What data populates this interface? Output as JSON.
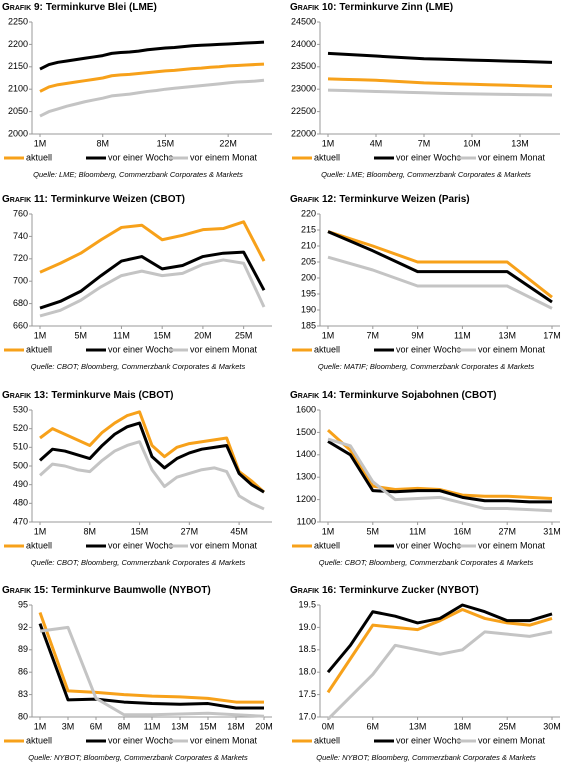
{
  "chart_data": [
    {
      "type": "line",
      "label": "Grafik 9:",
      "title": "Terminkurve Blei (LME)",
      "source": "Quelle: LME; Bloomberg, Commerzbank Corporates & Markets",
      "categories": [
        "1M",
        null,
        null,
        null,
        null,
        null,
        null,
        "8M",
        null,
        null,
        null,
        null,
        null,
        null,
        "15M",
        null,
        null,
        null,
        null,
        null,
        null,
        "22M",
        null,
        null,
        null,
        null
      ],
      "ylim": [
        2000,
        2250
      ],
      "yticks": [
        2000,
        2050,
        2100,
        2150,
        2200,
        2250
      ],
      "series": [
        {
          "name": "aktuell",
          "color": "#f7a11a",
          "values": [
            2095,
            2105,
            2110,
            2113,
            2116,
            2119,
            2122,
            2125,
            2130,
            2132,
            2133,
            2135,
            2137,
            2139,
            2141,
            2142,
            2144,
            2146,
            2147,
            2149,
            2150,
            2152,
            2153,
            2154,
            2155,
            2156
          ]
        },
        {
          "name": "vor einer Woche",
          "color": "#000000",
          "values": [
            2145,
            2155,
            2160,
            2163,
            2166,
            2169,
            2172,
            2175,
            2180,
            2182,
            2183,
            2185,
            2188,
            2190,
            2192,
            2193,
            2195,
            2197,
            2198,
            2199,
            2200,
            2201,
            2202,
            2203,
            2204,
            2205
          ]
        },
        {
          "name": "vor einem Monat",
          "color": "#c4c4c4",
          "values": [
            2040,
            2050,
            2056,
            2062,
            2067,
            2072,
            2076,
            2080,
            2085,
            2087,
            2089,
            2092,
            2095,
            2097,
            2100,
            2102,
            2104,
            2106,
            2108,
            2110,
            2112,
            2114,
            2116,
            2117,
            2118,
            2120
          ]
        }
      ]
    },
    {
      "type": "line",
      "label": "Grafik 10:",
      "title": "Terminkurve Zinn (LME)",
      "source": "Quelle: LME; Bloomberg, Commerzbank Corporates & Markets",
      "categories": [
        "1M",
        null,
        null,
        "4M",
        null,
        null,
        "7M",
        null,
        null,
        "10M",
        null,
        null,
        "13M",
        null,
        null
      ],
      "ylim": [
        22000,
        24500
      ],
      "yticks": [
        22000,
        22500,
        23000,
        23500,
        24000,
        24500
      ],
      "series": [
        {
          "name": "aktuell",
          "color": "#f7a11a",
          "values": [
            23230,
            23220,
            23210,
            23200,
            23180,
            23160,
            23140,
            23130,
            23120,
            23110,
            23100,
            23090,
            23080,
            23070,
            23060
          ]
        },
        {
          "name": "vor einer Woche",
          "color": "#000000",
          "values": [
            23800,
            23780,
            23760,
            23740,
            23720,
            23700,
            23680,
            23670,
            23660,
            23650,
            23640,
            23630,
            23620,
            23610,
            23600
          ]
        },
        {
          "name": "vor einem Monat",
          "color": "#c4c4c4",
          "values": [
            22980,
            22970,
            22960,
            22950,
            22940,
            22930,
            22920,
            22910,
            22900,
            22895,
            22890,
            22885,
            22880,
            22875,
            22870
          ]
        }
      ]
    },
    {
      "type": "line",
      "label": "Grafik 11:",
      "title": "Terminkurve Weizen (CBOT)",
      "source": "Quelle: CBOT; Bloomberg, Commerzbank Corporates & Markets",
      "categories": [
        "1M",
        null,
        "5M",
        null,
        "11M",
        null,
        "15M",
        null,
        "20M",
        null,
        "25M",
        null
      ],
      "ylim": [
        660,
        760
      ],
      "yticks": [
        660,
        680,
        700,
        720,
        740,
        760
      ],
      "series": [
        {
          "name": "aktuell",
          "color": "#f7a11a",
          "values": [
            708,
            716,
            725,
            737,
            748,
            750,
            737,
            741,
            746,
            747,
            753,
            718
          ]
        },
        {
          "name": "vor einer Woche",
          "color": "#000000",
          "values": [
            676,
            682,
            691,
            705,
            718,
            722,
            711,
            714,
            722,
            725,
            726,
            692
          ]
        },
        {
          "name": "vor einem Monat",
          "color": "#c4c4c4",
          "values": [
            669,
            674,
            683,
            695,
            705,
            709,
            705,
            707,
            715,
            719,
            716,
            677
          ]
        }
      ]
    },
    {
      "type": "line",
      "label": "Grafik 12:",
      "title": "Terminkurve Weizen (Paris)",
      "source": "Quelle: MATIF; Bloomberg, Commerzbank Corporates & Markets",
      "categories": [
        "1M",
        "7M",
        "9M",
        "11M",
        "13M",
        "17M"
      ],
      "ylim": [
        185,
        220
      ],
      "yticks": [
        185,
        190,
        195,
        200,
        205,
        210,
        215,
        220
      ],
      "series": [
        {
          "name": "aktuell",
          "color": "#f7a11a",
          "values": [
            214.5,
            210,
            205,
            205,
            205,
            194
          ]
        },
        {
          "name": "vor einer Woche",
          "color": "#000000",
          "values": [
            214.5,
            208.5,
            202,
            202,
            202,
            192.5
          ]
        },
        {
          "name": "vor einem Monat",
          "color": "#c4c4c4",
          "values": [
            206.5,
            202.5,
            197.5,
            197.5,
            197.5,
            190.5
          ]
        }
      ]
    },
    {
      "type": "line",
      "label": "Grafik 13:",
      "title": "Terminkurve Mais (CBOT)",
      "source": "Quelle: CBOT; Bloomberg, Commerzbank Corporates & Markets",
      "categories": [
        "1M",
        null,
        null,
        null,
        "8M",
        null,
        null,
        null,
        "15M",
        null,
        null,
        null,
        "27M",
        null,
        null,
        null,
        "45M",
        null,
        null
      ],
      "ylim": [
        470,
        530
      ],
      "yticks": [
        470,
        480,
        490,
        500,
        510,
        520,
        530
      ],
      "series": [
        {
          "name": "aktuell",
          "color": "#f7a11a",
          "values": [
            515,
            520,
            517,
            514,
            511,
            518,
            523,
            527,
            529,
            511,
            505,
            510,
            512,
            513,
            514,
            515,
            497,
            492,
            486
          ]
        },
        {
          "name": "vor einer Woche",
          "color": "#000000",
          "values": [
            503,
            509,
            508,
            506,
            504,
            511,
            517,
            521,
            523,
            505,
            499,
            504,
            507,
            509,
            510,
            511,
            496,
            490,
            486
          ]
        },
        {
          "name": "vor einem Monat",
          "color": "#c4c4c4",
          "values": [
            495,
            501,
            500,
            498,
            497,
            503,
            508,
            511,
            513,
            498,
            489,
            494,
            496,
            498,
            499,
            497,
            484,
            480,
            477
          ]
        }
      ]
    },
    {
      "type": "line",
      "label": "Grafik 14:",
      "title": "Terminkurve Sojabohnen (CBOT)",
      "source": "Quelle: CBOT; Bloomberg, Commerzbank Corporates & Markets",
      "categories": [
        "1M",
        null,
        "5M",
        null,
        "11M",
        null,
        "16M",
        null,
        "27M",
        null,
        "31M"
      ],
      "ylim": [
        1100,
        1600
      ],
      "yticks": [
        1100,
        1200,
        1300,
        1400,
        1500,
        1600
      ],
      "series": [
        {
          "name": "aktuell",
          "color": "#f7a11a",
          "values": [
            1510,
            1420,
            1260,
            1245,
            1250,
            1245,
            1220,
            1215,
            1215,
            1210,
            1205
          ]
        },
        {
          "name": "vor einer Woche",
          "color": "#000000",
          "values": [
            1460,
            1400,
            1240,
            1235,
            1240,
            1240,
            1210,
            1195,
            1195,
            1190,
            1190
          ]
        },
        {
          "name": "vor einem Monat",
          "color": "#c4c4c4",
          "values": [
            1470,
            1440,
            1280,
            1200,
            1205,
            1210,
            1185,
            1160,
            1160,
            1155,
            1150
          ]
        }
      ]
    },
    {
      "type": "line",
      "label": "Grafik 15:",
      "title": "Terminkurve Baumwolle (NYBOT)",
      "source": "Quelle: NYBOT; Bloomberg, Commerzbank Corporates & Markets",
      "categories": [
        "1M",
        "3M",
        "6M",
        "8M",
        "11M",
        "13M",
        "15M",
        "18M",
        "20M"
      ],
      "ylim": [
        80,
        95
      ],
      "yticks": [
        80,
        83,
        86,
        89,
        92,
        95
      ],
      "series": [
        {
          "name": "aktuell",
          "color": "#f7a11a",
          "values": [
            94,
            83.5,
            83.3,
            83,
            82.8,
            82.7,
            82.5,
            82,
            82
          ]
        },
        {
          "name": "vor einer Woche",
          "color": "#000000",
          "values": [
            92.5,
            82.3,
            82.4,
            82,
            81.8,
            81.7,
            81.8,
            81.2,
            81.2
          ]
        },
        {
          "name": "vor einem Monat",
          "color": "#c4c4c4",
          "values": [
            91.5,
            92,
            82.5,
            80.3,
            80.3,
            80.4,
            80.5,
            80.3,
            80.1
          ]
        }
      ]
    },
    {
      "type": "line",
      "label": "Grafik 16:",
      "title": "Terminkurve Zucker (NYBOT)",
      "source": "Quelle: NYBOT; Bloomberg, Commerzbank Corporates & Markets",
      "categories": [
        "0M",
        null,
        "6M",
        null,
        "13M",
        null,
        "18M",
        null,
        "25M",
        null,
        "30M"
      ],
      "ylim": [
        17,
        19.5
      ],
      "yticks": [
        {
          "value": 17,
          "label": "17.0"
        },
        17.5,
        {
          "value": 18,
          "label": "18.0"
        },
        18.5,
        {
          "value": 19,
          "label": "19.0"
        },
        19.5
      ],
      "series": [
        {
          "name": "aktuell",
          "color": "#f7a11a",
          "values": [
            17.55,
            18.3,
            19.05,
            19.0,
            18.95,
            19.15,
            19.4,
            19.2,
            19.1,
            19.05,
            19.2
          ]
        },
        {
          "name": "vor einer Woche",
          "color": "#000000",
          "values": [
            18.0,
            18.6,
            19.35,
            19.25,
            19.1,
            19.2,
            19.5,
            19.35,
            19.15,
            19.15,
            19.3
          ]
        },
        {
          "name": "vor einem Monat",
          "color": "#c4c4c4",
          "values": [
            16.95,
            17.45,
            17.95,
            18.6,
            18.5,
            18.4,
            18.5,
            18.9,
            18.85,
            18.8,
            18.9
          ]
        }
      ]
    }
  ]
}
